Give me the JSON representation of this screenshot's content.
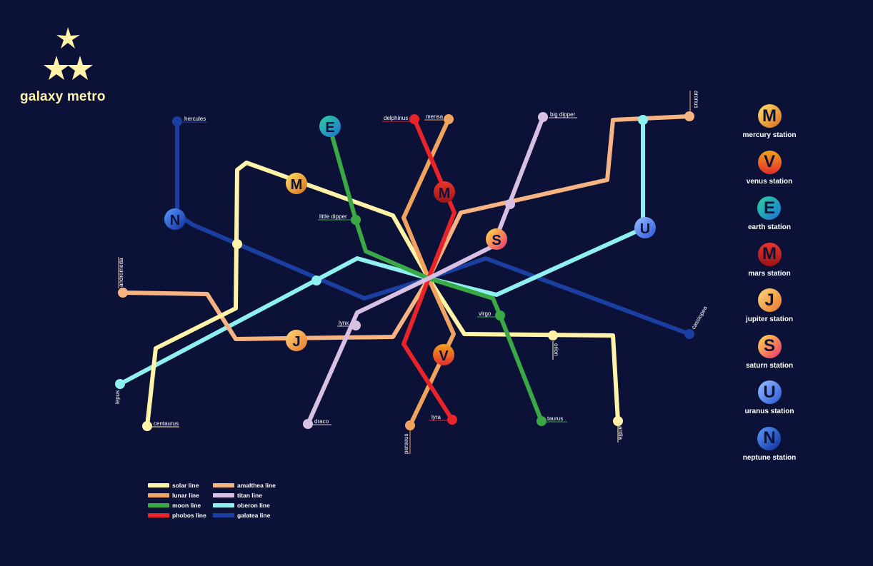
{
  "brand": {
    "title": "galaxy metro",
    "logo_icon": "three-stars-icon",
    "logo_color": "#fff3a8"
  },
  "colors": {
    "background": "#0c1237",
    "solar": "#fff3a8",
    "lunar": "#f0a35e",
    "moon": "#3aa845",
    "phobos": "#e8232a",
    "amalthea": "#f5b482",
    "titan": "#d8c0e2",
    "oberon": "#8ff0f0",
    "galatea": "#1a3fa0",
    "label": "#ffffff"
  },
  "line_legend": [
    {
      "key": "solar",
      "label": "solar line"
    },
    {
      "key": "lunar",
      "label": "lunar line"
    },
    {
      "key": "moon",
      "label": "moon line"
    },
    {
      "key": "phobos",
      "label": "phobos line"
    },
    {
      "key": "amalthea",
      "label": "amalthea line"
    },
    {
      "key": "titan",
      "label": "titan line"
    },
    {
      "key": "oberon",
      "label": "oberon line"
    },
    {
      "key": "galatea",
      "label": "galatea line"
    }
  ],
  "station_legend": [
    {
      "letter": "M",
      "label": "mercury station",
      "gradient": "mercury"
    },
    {
      "letter": "V",
      "label": "venus station",
      "gradient": "venus"
    },
    {
      "letter": "E",
      "label": "earth station",
      "gradient": "earth"
    },
    {
      "letter": "M",
      "label": "mars station",
      "gradient": "mars"
    },
    {
      "letter": "J",
      "label": "jupiter station",
      "gradient": "jupiter"
    },
    {
      "letter": "S",
      "label": "saturn station",
      "gradient": "saturn"
    },
    {
      "letter": "U",
      "label": "uranus station",
      "gradient": "uranus"
    },
    {
      "letter": "N",
      "label": "neptune station",
      "gradient": "neptune"
    }
  ],
  "stations": {
    "hercules": "hercules",
    "delphinus": "delphinus",
    "mensa": "mensa",
    "big_dipper": "big dipper",
    "aronus": "aronus",
    "little_dipper": "little dipper",
    "andromeda": "andromeda",
    "cassiopea": "cassiopea",
    "lynx": "lynx",
    "virgo": "virgo",
    "orion": "orion",
    "lepus": "lepus",
    "centaurus": "centaurus",
    "draco": "draco",
    "lyra": "lyra",
    "perseus": "perseus",
    "taurus": "taurus",
    "antlia": "antlia"
  },
  "planet_badges": {
    "mercury": "M",
    "venus": "V",
    "earth": "E",
    "mars": "M",
    "jupiter": "J",
    "saturn": "S",
    "uranus": "U",
    "neptune": "N"
  }
}
